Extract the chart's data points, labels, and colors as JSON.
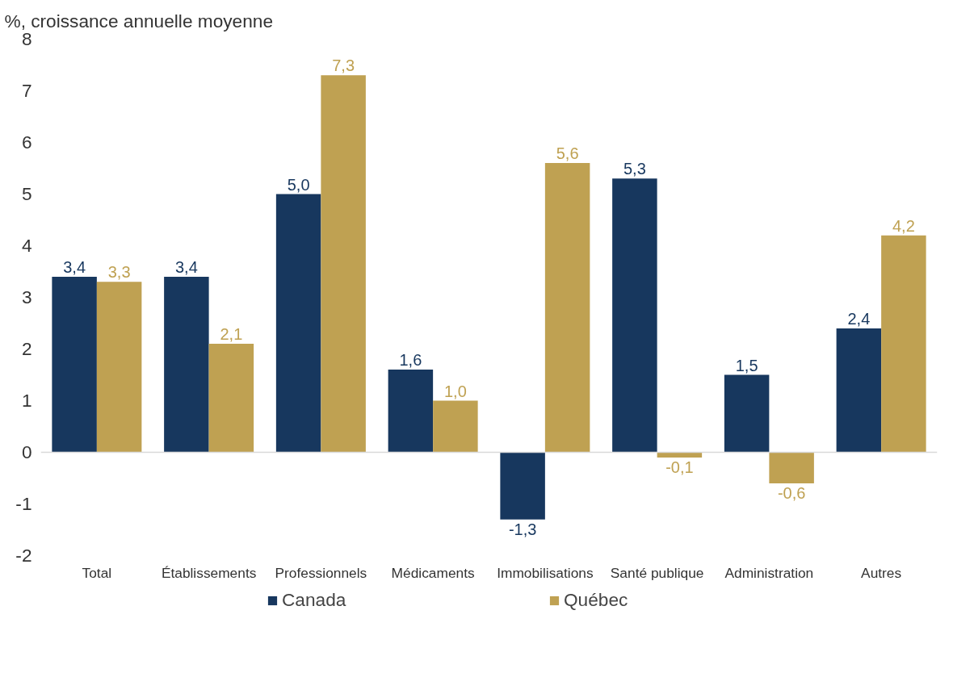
{
  "chart_data": {
    "type": "bar",
    "ylabel": "%, croissance annuelle moyenne",
    "categories": [
      "Total",
      "Établissements",
      "Professionnels",
      "Médicaments",
      "Immobilisations",
      "Santé publique",
      "Administration",
      "Autres"
    ],
    "series": [
      {
        "name": "Canada",
        "color": "#17375e",
        "values": [
          3.4,
          3.4,
          5.0,
          1.6,
          -1.3,
          5.3,
          1.5,
          2.4
        ],
        "value_labels": [
          "3,4",
          "3,4",
          "5,0",
          "1,6",
          "-1,3",
          "5,3",
          "1,5",
          "2,4"
        ]
      },
      {
        "name": "Québec",
        "color": "#bfa152",
        "values": [
          3.3,
          2.1,
          7.3,
          1.0,
          5.6,
          -0.1,
          -0.6,
          4.2
        ],
        "value_labels": [
          "3,3",
          "2,1",
          "7,3",
          "1,0",
          "5,6",
          "-0,1",
          "-0,6",
          "4,2"
        ]
      }
    ],
    "ylim": [
      -2,
      8
    ],
    "yticks": [
      -2,
      -1,
      0,
      1,
      2,
      3,
      4,
      5,
      6,
      7,
      8
    ],
    "grid": false,
    "legend": "bottom",
    "ref_lines": [
      {
        "axis": "y",
        "value": 0,
        "color": "#d9d9d9"
      }
    ]
  }
}
